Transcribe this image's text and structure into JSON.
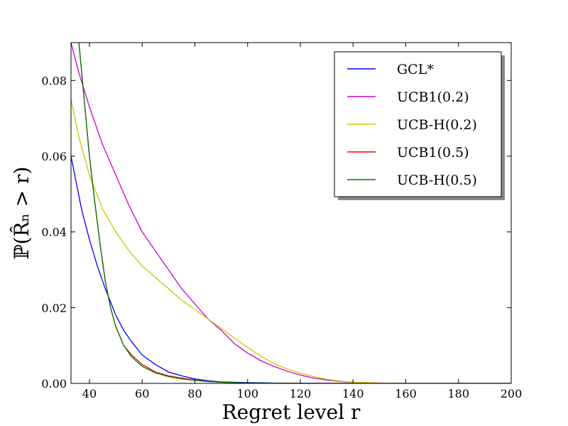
{
  "chart_data": {
    "type": "line",
    "title": "",
    "xlabel": "Regret level r",
    "ylabel": "ℙ(R̂ₙ > r)",
    "xlim": [
      33,
      200
    ],
    "ylim": [
      0,
      0.09
    ],
    "x_ticks": [
      40,
      60,
      80,
      100,
      120,
      140,
      160,
      180,
      200
    ],
    "x_tick_labels": [
      "40",
      "60",
      "80",
      "100",
      "120",
      "140",
      "160",
      "180",
      "200"
    ],
    "y_ticks": [
      0.0,
      0.02,
      0.04,
      0.06,
      0.08
    ],
    "y_tick_labels": [
      "0.00",
      "0.02",
      "0.04",
      "0.06",
      "0.08"
    ],
    "grid": false,
    "legend_position": "top-right",
    "series": [
      {
        "name": "GCL*",
        "color": "#0000ff",
        "points": [
          [
            33,
            0.06
          ],
          [
            35,
            0.053
          ],
          [
            37,
            0.046
          ],
          [
            40,
            0.038
          ],
          [
            43,
            0.031
          ],
          [
            46,
            0.025
          ],
          [
            50,
            0.018
          ],
          [
            53,
            0.014
          ],
          [
            56,
            0.011
          ],
          [
            60,
            0.0075
          ],
          [
            65,
            0.005
          ],
          [
            70,
            0.003
          ],
          [
            75,
            0.002
          ],
          [
            80,
            0.0012
          ],
          [
            85,
            0.0007
          ],
          [
            90,
            0.0004
          ],
          [
            100,
            0.0002
          ],
          [
            110,
            0.0001
          ],
          [
            130,
            3e-05
          ],
          [
            160,
            0.0
          ],
          [
            200,
            0.0
          ]
        ]
      },
      {
        "name": "UCB1(0.2)",
        "color": "#cc00cc",
        "points": [
          [
            33,
            0.09
          ],
          [
            36,
            0.082
          ],
          [
            40,
            0.073
          ],
          [
            45,
            0.063
          ],
          [
            50,
            0.055
          ],
          [
            55,
            0.047
          ],
          [
            60,
            0.04
          ],
          [
            65,
            0.035
          ],
          [
            70,
            0.03
          ],
          [
            75,
            0.025
          ],
          [
            80,
            0.021
          ],
          [
            85,
            0.017
          ],
          [
            90,
            0.014
          ],
          [
            95,
            0.0105
          ],
          [
            100,
            0.008
          ],
          [
            105,
            0.006
          ],
          [
            110,
            0.0045
          ],
          [
            115,
            0.0032
          ],
          [
            120,
            0.0022
          ],
          [
            125,
            0.0014
          ],
          [
            130,
            0.0009
          ],
          [
            135,
            0.0005
          ],
          [
            140,
            0.0003
          ],
          [
            150,
            0.0001
          ],
          [
            160,
            0.0
          ],
          [
            200,
            0.0
          ]
        ]
      },
      {
        "name": "UCB-H(0.2)",
        "color": "#c8c800",
        "points": [
          [
            33,
            0.075
          ],
          [
            36,
            0.065
          ],
          [
            40,
            0.055
          ],
          [
            45,
            0.046
          ],
          [
            50,
            0.04
          ],
          [
            55,
            0.035
          ],
          [
            60,
            0.031
          ],
          [
            65,
            0.028
          ],
          [
            70,
            0.025
          ],
          [
            75,
            0.022
          ],
          [
            80,
            0.0195
          ],
          [
            85,
            0.017
          ],
          [
            90,
            0.0145
          ],
          [
            95,
            0.012
          ],
          [
            100,
            0.0095
          ],
          [
            105,
            0.0072
          ],
          [
            110,
            0.0052
          ],
          [
            115,
            0.0038
          ],
          [
            120,
            0.0027
          ],
          [
            125,
            0.0018
          ],
          [
            130,
            0.0011
          ],
          [
            135,
            0.0006
          ],
          [
            140,
            0.0003
          ],
          [
            150,
            0.0001
          ],
          [
            160,
            0.0
          ],
          [
            200,
            0.0
          ]
        ]
      },
      {
        "name": "UCB1(0.5)",
        "color": "#ff0000",
        "points": [
          [
            36,
            0.09
          ],
          [
            38,
            0.075
          ],
          [
            40,
            0.06
          ],
          [
            42,
            0.048
          ],
          [
            44,
            0.037
          ],
          [
            46,
            0.027
          ],
          [
            48,
            0.02
          ],
          [
            50,
            0.015
          ],
          [
            53,
            0.01
          ],
          [
            56,
            0.0075
          ],
          [
            60,
            0.005
          ],
          [
            65,
            0.003
          ],
          [
            70,
            0.002
          ],
          [
            75,
            0.0014
          ],
          [
            80,
            0.0009
          ],
          [
            85,
            0.0005
          ],
          [
            90,
            0.0003
          ],
          [
            100,
            0.0001
          ],
          [
            120,
            0.0
          ],
          [
            200,
            0.0
          ]
        ]
      },
      {
        "name": "UCB-H(0.5)",
        "color": "#007700",
        "points": [
          [
            36,
            0.09
          ],
          [
            38,
            0.075
          ],
          [
            40,
            0.06
          ],
          [
            42,
            0.048
          ],
          [
            44,
            0.037
          ],
          [
            46,
            0.027
          ],
          [
            48,
            0.02
          ],
          [
            50,
            0.015
          ],
          [
            53,
            0.01
          ],
          [
            56,
            0.007
          ],
          [
            60,
            0.0045
          ],
          [
            65,
            0.0028
          ],
          [
            70,
            0.0018
          ],
          [
            75,
            0.0012
          ],
          [
            80,
            0.0008
          ],
          [
            85,
            0.0005
          ],
          [
            90,
            0.0003
          ],
          [
            100,
            0.0001
          ],
          [
            120,
            0.0
          ],
          [
            200,
            0.0
          ]
        ]
      }
    ]
  }
}
